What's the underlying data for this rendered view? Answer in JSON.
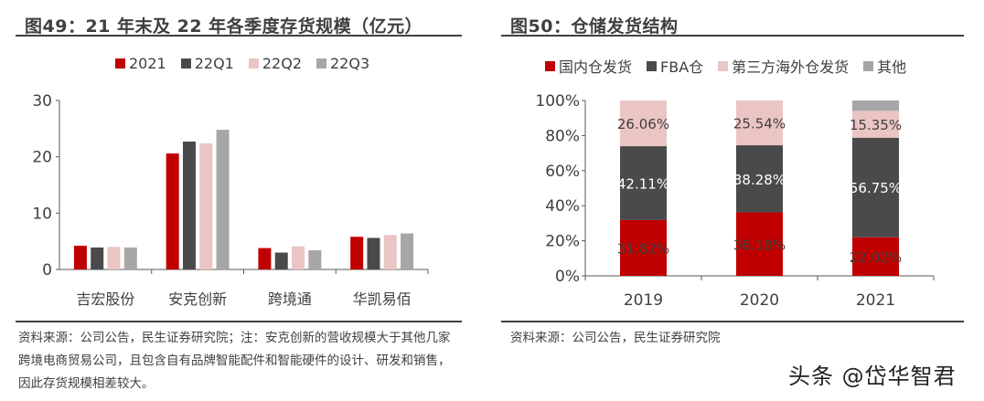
{
  "left": {
    "title": "图49：21 年末及 22 年各季度存货规模（亿元）",
    "footnote": "资料来源：公司公告，民生证券研究院；注：安克创新的营收规模大于其他几家跨境电商贸易公司，且包含自有品牌智能配件和智能硬件的设计、研发和销售，因此存货规模相差较大。"
  },
  "right": {
    "title": "图50：仓储发货结构",
    "footnote": "资料来源：公司公告，民生证券研究院"
  },
  "watermark": "头条 @岱华智君",
  "chart_data": [
    {
      "type": "bar",
      "categories": [
        "吉宏股份",
        "安克创新",
        "跨境通",
        "华凯易佰"
      ],
      "series": [
        {
          "name": "2021",
          "color": "#c00000",
          "values": [
            4.2,
            20.6,
            3.8,
            5.8
          ]
        },
        {
          "name": "22Q1",
          "color": "#4a4a4b",
          "values": [
            3.9,
            22.7,
            3.0,
            5.6
          ]
        },
        {
          "name": "22Q2",
          "color": "#ebc4c4",
          "values": [
            4.0,
            22.4,
            4.1,
            6.1
          ]
        },
        {
          "name": "22Q3",
          "color": "#a6a6a6",
          "values": [
            3.9,
            24.8,
            3.4,
            6.4
          ]
        }
      ],
      "ylim": [
        0,
        30
      ],
      "yticks": [
        "0",
        "10",
        "20",
        "30"
      ],
      "legend": "top",
      "grid": false
    },
    {
      "type": "bar",
      "stacked": true,
      "categories": [
        "2019",
        "2020",
        "2021"
      ],
      "series": [
        {
          "name": "国内仓发货",
          "color": "#c00000",
          "values": [
            31.82,
            36.18,
            22.02
          ],
          "labels": [
            "31.82%",
            "36.18%",
            "22.02%"
          ]
        },
        {
          "name": "FBA仓",
          "color": "#4a4a4b",
          "values": [
            42.11,
            38.28,
            56.75
          ],
          "labels": [
            "42.11%",
            "38.28%",
            "56.75%"
          ]
        },
        {
          "name": "第三方海外仓发货",
          "color": "#ebc4c4",
          "values": [
            26.06,
            25.54,
            15.35
          ],
          "labels": [
            "26.06%",
            "25.54%",
            "15.35%"
          ]
        },
        {
          "name": "其他",
          "color": "#a6a6a6",
          "values": [
            0,
            0,
            5.88
          ],
          "labels": [
            "",
            "",
            ""
          ]
        }
      ],
      "ylim": [
        0,
        100
      ],
      "yticks": [
        "0%",
        "20%",
        "40%",
        "60%",
        "80%",
        "100%"
      ],
      "legend": "top",
      "grid": false
    }
  ]
}
